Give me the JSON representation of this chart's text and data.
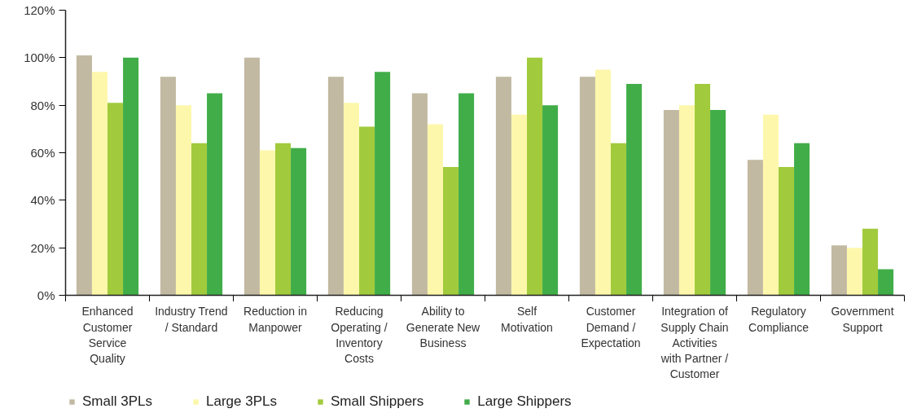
{
  "chart_data": {
    "type": "bar",
    "categories": [
      "Enhanced Customer Service Quality",
      "Industry Trend / Standard",
      "Reduction in Manpower",
      "Reducing Operating / Inventory Costs",
      "Ability to Generate New Business",
      "Self Motivation",
      "Customer Demand / Expectation",
      "Integration of Supply Chain Activities with Partner / Customer",
      "Regulatory Compliance",
      "Government Support"
    ],
    "series": [
      {
        "name": "Small 3PLs",
        "color": "#c2b9a2",
        "values": [
          101,
          92,
          100,
          92,
          85,
          92,
          92,
          78,
          57,
          21
        ]
      },
      {
        "name": "Large 3PLs",
        "color": "#fdf7ac",
        "values": [
          94,
          80,
          61,
          81,
          72,
          76,
          95,
          80,
          76,
          20
        ]
      },
      {
        "name": "Small Shippers",
        "color": "#a1cb3c",
        "values": [
          81,
          64,
          64,
          71,
          54,
          100,
          64,
          89,
          54,
          28
        ]
      },
      {
        "name": "Large Shippers",
        "color": "#41ad49",
        "values": [
          100,
          85,
          62,
          94,
          85,
          80,
          89,
          78,
          64,
          11
        ]
      }
    ],
    "ylim": [
      0,
      120
    ],
    "yticks": [
      {
        "value": 0,
        "label": "0%"
      },
      {
        "value": 20,
        "label": "20%"
      },
      {
        "value": 40,
        "label": "40%"
      },
      {
        "value": 60,
        "label": "60%"
      },
      {
        "value": 80,
        "label": "80%"
      },
      {
        "value": 100,
        "label": "100%"
      },
      {
        "value": 120,
        "label": "120%"
      }
    ],
    "grid": false,
    "legend": "bottom"
  }
}
